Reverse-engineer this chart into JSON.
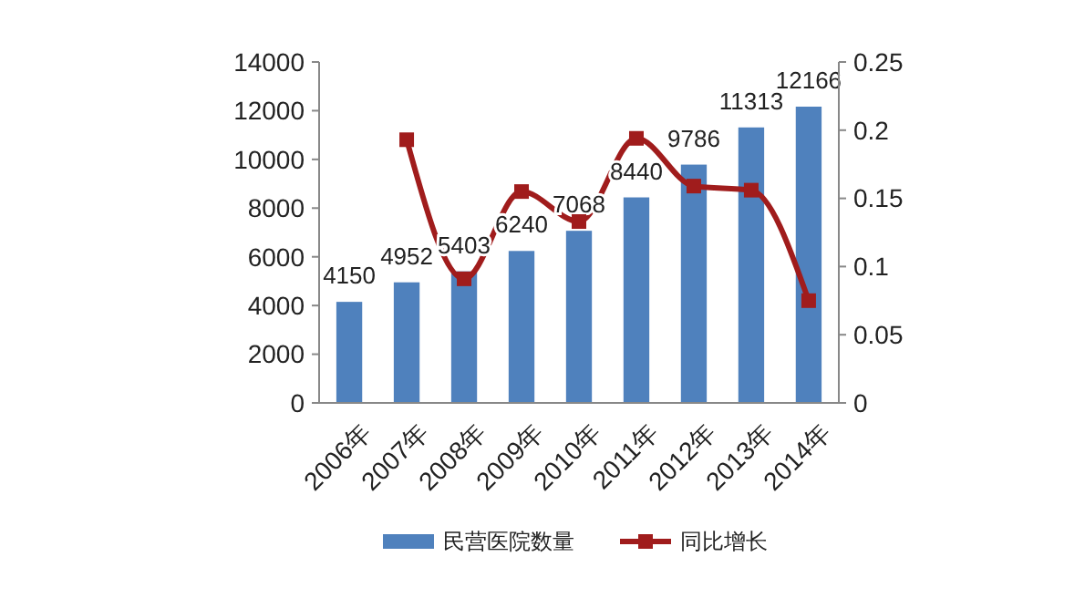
{
  "chart_data": {
    "type": "bar",
    "categories": [
      "2006年",
      "2007年",
      "2008年",
      "2009年",
      "2010年",
      "2011年",
      "2012年",
      "2013年",
      "2014年"
    ],
    "series": [
      {
        "name": "民营医院数量",
        "color": "#4f81bd",
        "values": [
          4150,
          4952,
          5403,
          6240,
          7068,
          8440,
          9786,
          11313,
          12166
        ],
        "value_labels": [
          "4150",
          "4952",
          "5403",
          "6240",
          "7068",
          "8440",
          "9786",
          "11313",
          "12166"
        ]
      },
      {
        "name": "同比增长",
        "type": "line",
        "axis": "y2",
        "color": "#a01c1c",
        "marker": "square",
        "values": [
          null,
          0.193,
          0.091,
          0.155,
          0.133,
          0.194,
          0.159,
          0.156,
          0.075
        ]
      }
    ],
    "ylim": [
      0,
      14000
    ],
    "yticks": [
      0,
      2000,
      4000,
      6000,
      8000,
      10000,
      12000,
      14000
    ],
    "y2lim": [
      0,
      0.25
    ],
    "y2ticks": [
      0,
      0.05,
      0.1,
      0.15,
      0.2,
      0.25
    ],
    "legend": "bottom",
    "grid": false
  }
}
